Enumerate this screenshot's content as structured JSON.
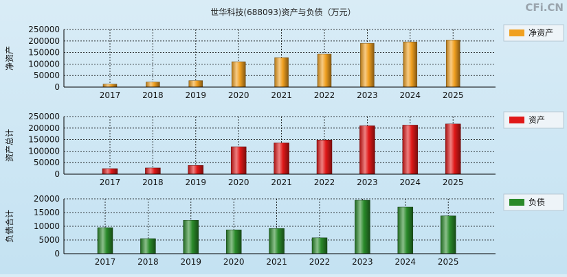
{
  "page": {
    "title": "世华科技(688093)资产与负债（万元）",
    "watermark": "CFi.CN"
  },
  "chart_data": [
    {
      "type": "bar",
      "ylabel": "净资产",
      "categories": [
        "2017",
        "2018",
        "2019",
        "2020",
        "2021",
        "2022",
        "2023",
        "2024",
        "2025"
      ],
      "series": [
        {
          "name": "净资产",
          "values": [
            13000,
            22000,
            28000,
            110000,
            128000,
            143000,
            190000,
            196000,
            204000
          ]
        }
      ],
      "ylim": [
        0,
        250000
      ],
      "yticks": [
        0,
        50000,
        100000,
        150000,
        200000,
        250000
      ],
      "legend": "right",
      "grid": true,
      "color": "#f0a020"
    },
    {
      "type": "bar",
      "ylabel": "资产总计",
      "categories": [
        "2017",
        "2018",
        "2019",
        "2020",
        "2021",
        "2022",
        "2023",
        "2024",
        "2025"
      ],
      "series": [
        {
          "name": "资产",
          "values": [
            24000,
            27000,
            38000,
            119000,
            136000,
            148000,
            210000,
            213000,
            218000
          ]
        }
      ],
      "ylim": [
        0,
        250000
      ],
      "yticks": [
        0,
        50000,
        100000,
        150000,
        200000,
        250000
      ],
      "legend": "right",
      "grid": true,
      "color": "#e01818"
    },
    {
      "type": "bar",
      "ylabel": "负债合计",
      "categories": [
        "2017",
        "2018",
        "2019",
        "2020",
        "2021",
        "2022",
        "2023",
        "2024",
        "2025"
      ],
      "series": [
        {
          "name": "负债",
          "values": [
            9500,
            5500,
            12200,
            8700,
            9200,
            5800,
            19500,
            17000,
            13800
          ]
        }
      ],
      "ylim": [
        0,
        20000
      ],
      "yticks": [
        0,
        5000,
        10000,
        15000,
        20000
      ],
      "legend": "right",
      "grid": true,
      "color": "#2a8a2a"
    }
  ]
}
